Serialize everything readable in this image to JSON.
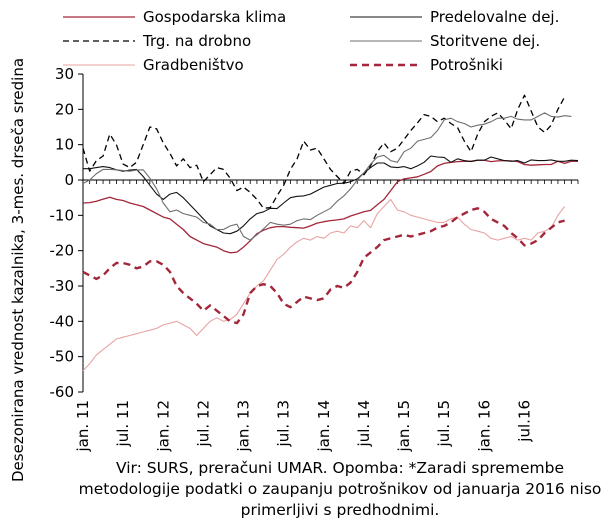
{
  "chart_data": {
    "type": "line",
    "ylabel": "Desezonirana vrednost kazalnika, 3-mes. drseča sredina",
    "ylim": [
      -60,
      30
    ],
    "yticks": [
      30,
      20,
      10,
      0,
      -10,
      -20,
      -30,
      -40,
      -50,
      -60
    ],
    "xtick_labels": [
      "jan. 11",
      "jul. 11",
      "jan. 12",
      "jul. 12",
      "jan. 13",
      "jul. 13",
      "jan. 14",
      "jul. 14",
      "jan. 15",
      "jul. 15",
      "jan. 16",
      "jul.16"
    ],
    "period_start": "2011-01",
    "period_end": "2016-08",
    "grid": false,
    "legend_position": "top",
    "series": [
      {
        "name": "Gospodarska klima",
        "color": "#a3263a",
        "dash": "solid",
        "width": 1.3,
        "values": [
          -6.5,
          -6.4,
          -6,
          -5.4,
          -4.9,
          -5.5,
          -5.8,
          -6.5,
          -7,
          -7.5,
          -8.5,
          -9.5,
          -10.5,
          -11,
          -12.5,
          -14,
          -16,
          -17,
          -18,
          -18.5,
          -19,
          -20,
          -20.6,
          -20.4,
          -19,
          -17.2,
          -15.2,
          -14.2,
          -13.5,
          -13.2,
          -13.2,
          -13.4,
          -13.5,
          -13.6,
          -13,
          -12.2,
          -11.8,
          -11.5,
          -11.3,
          -11,
          -10.2,
          -9.6,
          -9,
          -8.6,
          -7,
          -5.5,
          -3,
          -0.5,
          0.3,
          0.6,
          0.9,
          1.6,
          2.4,
          4,
          4.7,
          5,
          5.2,
          5.3,
          5.3,
          5.6,
          5.6,
          5.2,
          5.4,
          5.5,
          5.4,
          5.2,
          4.4,
          4.2,
          4.3,
          4.4,
          4.4,
          5.3,
          4.7,
          5.3,
          5.3
        ]
      },
      {
        "name": "Predelovalne dej.",
        "color": "#111111",
        "dash": "solid",
        "width": 1.1,
        "values": [
          3.2,
          3.2,
          3.5,
          3.8,
          3.5,
          2.9,
          2.5,
          2.8,
          3,
          1,
          -1.5,
          -4,
          -5.5,
          -4,
          -3.5,
          -5,
          -7,
          -9,
          -11,
          -13,
          -14,
          -15,
          -15.2,
          -14.5,
          -13,
          -11,
          -9.5,
          -9,
          -8,
          -8.1,
          -6.5,
          -5,
          -4.6,
          -4.5,
          -4,
          -3,
          -2,
          -1.5,
          -1,
          -0.9,
          -0.5,
          0.3,
          2,
          3.5,
          4.8,
          4.8,
          3.7,
          3.5,
          3.8,
          3.2,
          4,
          5,
          6.8,
          6.5,
          6.4,
          5,
          6,
          5.5,
          5.2,
          5.6,
          5.6,
          6.5,
          6,
          5.5,
          5.3,
          5.5,
          4.8,
          5.7,
          5.5,
          5.5,
          5.7,
          5.3,
          5.3,
          5.6,
          5.5
        ]
      },
      {
        "name": "Trg. na drobno",
        "color": "#000000",
        "dash": "6,4",
        "width": 1.3,
        "values": [
          9,
          2.5,
          5.5,
          6.8,
          13,
          10,
          4.5,
          3.5,
          5,
          10,
          15,
          14.5,
          10.5,
          7.5,
          4,
          6,
          3.5,
          4.2,
          -0.5,
          1.5,
          3.5,
          3,
          0.5,
          -3,
          -2,
          -3.5,
          -5.5,
          -8,
          -7.8,
          -4.5,
          -1.5,
          3,
          6,
          11,
          8.5,
          9,
          6,
          3,
          1,
          -1,
          2.5,
          3,
          1.5,
          4,
          8,
          10.5,
          8,
          9,
          11.5,
          14,
          16.2,
          18.5,
          18,
          16.5,
          17.5,
          16,
          14.8,
          11,
          8,
          13,
          16.5,
          18,
          19,
          17,
          14.5,
          20,
          24,
          19.5,
          15,
          13.5,
          15.5,
          20,
          23.5
        ]
      },
      {
        "name": "Storitvene dej.",
        "color": "#6e6e6e",
        "dash": "solid",
        "width": 1.1,
        "values": [
          -1,
          0,
          1.8,
          3,
          3,
          2.9,
          2.7,
          2.5,
          2.8,
          2.9,
          0.5,
          -2.5,
          -6.5,
          -9,
          -8.5,
          -9.5,
          -10,
          -10.5,
          -12,
          -12.5,
          -14,
          -14,
          -13,
          -12.5,
          -16,
          -17,
          -15.5,
          -13.8,
          -12,
          -12.5,
          -12.8,
          -12.5,
          -11.5,
          -11,
          -11.2,
          -10,
          -9,
          -8,
          -6,
          -4.5,
          -2.5,
          0,
          2,
          4.5,
          6.5,
          7,
          5.5,
          5,
          8,
          9,
          11,
          11.5,
          12,
          14,
          17,
          17.5,
          16.5,
          16,
          15,
          15.5,
          15.8,
          16.5,
          17.5,
          17.5,
          18,
          17.2,
          17,
          17,
          18,
          19,
          18,
          17.8,
          18.2,
          18
        ]
      },
      {
        "name": "Gradbeništvo",
        "color": "#e8a3a3",
        "dash": "solid",
        "width": 1.1,
        "values": [
          -54,
          -52,
          -49.5,
          -48,
          -46.5,
          -45,
          -44.5,
          -44,
          -43.5,
          -43,
          -42.5,
          -42,
          -41,
          -40.5,
          -40,
          -41,
          -42,
          -44,
          -42,
          -40,
          -39,
          -40,
          -39.5,
          -38,
          -35,
          -32,
          -30,
          -28.5,
          -25.5,
          -22.5,
          -21,
          -19,
          -17.5,
          -16.5,
          -17,
          -16,
          -16.5,
          -15,
          -14.5,
          -15,
          -13,
          -13.5,
          -11.5,
          -13.5,
          -9.5,
          -7.5,
          -5.5,
          -8.5,
          -9,
          -10,
          -10.5,
          -11,
          -11.5,
          -12,
          -12,
          -11,
          -10.5,
          -12.5,
          -14,
          -14.5,
          -15,
          -16.5,
          -17,
          -16.5,
          -16,
          -17,
          -16.5,
          -17,
          -15,
          -14.5,
          -13.5,
          -10,
          -7.5
        ]
      },
      {
        "name": "Potrošniki",
        "color": "#a3263a",
        "dash": "7,5",
        "width": 2.4,
        "values": [
          -26,
          -27,
          -28,
          -27,
          -25,
          -23.5,
          -23.5,
          -24,
          -25,
          -24.5,
          -23,
          -23,
          -24,
          -26,
          -30,
          -32,
          -33.5,
          -35,
          -37,
          -35.5,
          -37,
          -38.5,
          -40,
          -40.5,
          -38,
          -32,
          -30,
          -29.5,
          -30,
          -32,
          -35,
          -36,
          -34.5,
          -33,
          -33.5,
          -34,
          -33.5,
          -31,
          -30,
          -30.5,
          -29,
          -26,
          -22,
          -20.5,
          -19,
          -17,
          -16.5,
          -16,
          -15.5,
          -16,
          -15.5,
          -15,
          -14.5,
          -13.5,
          -13,
          -12,
          -10.5,
          -9.5,
          -8.5,
          -8,
          -9,
          -11,
          -12,
          -13,
          -15,
          -16.5,
          -18.5,
          -18,
          -17,
          -15,
          -13.5,
          -12,
          -11.5
        ]
      }
    ]
  },
  "note": "Vir: SURS, preračuni UMAR. Opomba: *Zaradi spremembe metodologije podatki o zaupanju potrošnikov od januarja 2016 niso primerljivi s predhodnimi."
}
